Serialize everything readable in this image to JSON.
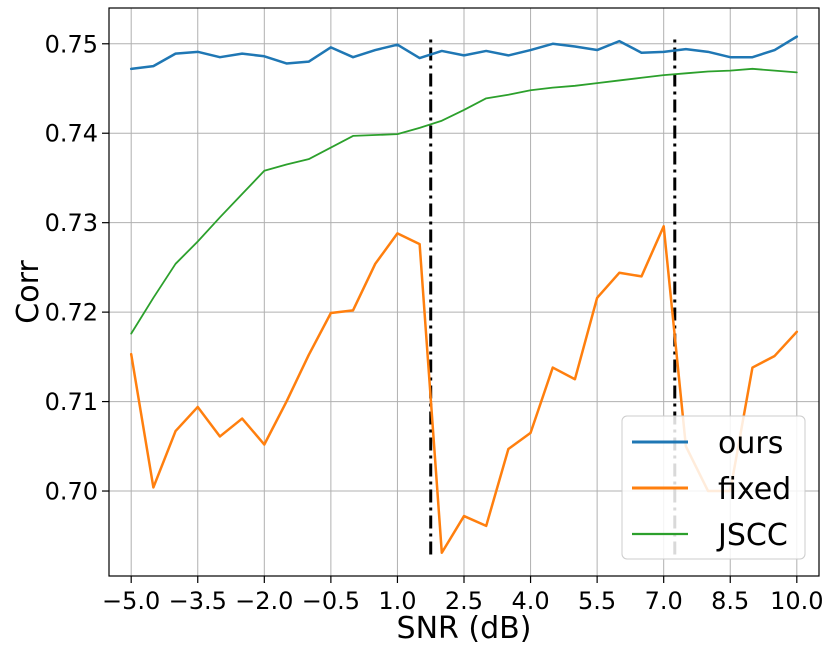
{
  "chart_data": {
    "type": "line",
    "xlabel": "SNR (dB)",
    "ylabel": "Corr",
    "xlim": [
      -5.5,
      10.5
    ],
    "ylim": [
      0.6905,
      0.754
    ],
    "xticks": [
      -5.0,
      -3.5,
      -2.0,
      -0.5,
      1.0,
      2.5,
      4.0,
      5.5,
      7.0,
      8.5,
      10.0
    ],
    "xtick_labels": [
      "−5.0",
      "−3.5",
      "−2.0",
      "−0.5",
      "1.0",
      "2.5",
      "4.0",
      "5.5",
      "7.0",
      "8.5",
      "10.0"
    ],
    "yticks": [
      0.7,
      0.71,
      0.72,
      0.73,
      0.74,
      0.75
    ],
    "ytick_labels": [
      "0.70",
      "0.71",
      "0.72",
      "0.73",
      "0.74",
      "0.75"
    ],
    "grid": true,
    "legend_position": "bottom-right",
    "x": [
      -5.0,
      -4.5,
      -4.0,
      -3.5,
      -3.0,
      -2.5,
      -2.0,
      -1.5,
      -1.0,
      -0.5,
      0.0,
      0.5,
      1.0,
      1.5,
      2.0,
      2.5,
      3.0,
      3.5,
      4.0,
      4.5,
      5.0,
      5.5,
      6.0,
      6.5,
      7.0,
      7.5,
      8.0,
      8.5,
      9.0,
      9.5,
      10.0
    ],
    "series": [
      {
        "name": "ours",
        "color": "#1f77b4",
        "width": 2.5,
        "values": [
          0.7472,
          0.7475,
          0.7489,
          0.7491,
          0.7485,
          0.7489,
          0.7486,
          0.7478,
          0.748,
          0.7496,
          0.7485,
          0.7493,
          0.7499,
          0.7484,
          0.7492,
          0.7487,
          0.7492,
          0.7487,
          0.7493,
          0.75,
          0.7497,
          0.7493,
          0.7503,
          0.749,
          0.7491,
          0.7494,
          0.7491,
          0.7485,
          0.7485,
          0.7493,
          0.7508
        ]
      },
      {
        "name": "fixed",
        "color": "#ff7f0e",
        "width": 2.5,
        "values": [
          0.7153,
          0.7004,
          0.7067,
          0.7094,
          0.7061,
          0.7081,
          0.7052,
          0.71,
          0.7152,
          0.7199,
          0.7202,
          0.7254,
          0.7288,
          0.7276,
          0.6931,
          0.6972,
          0.6961,
          0.7047,
          0.7065,
          0.7138,
          0.7125,
          0.7216,
          0.7244,
          0.724,
          0.7296,
          0.705,
          0.7,
          0.7,
          0.7138,
          0.7151,
          0.7178
        ]
      },
      {
        "name": "JSCC",
        "color": "#2ca02c",
        "width": 1.8,
        "values": [
          0.7176,
          0.7216,
          0.7254,
          0.7279,
          0.7306,
          0.7332,
          0.7358,
          0.7365,
          0.7371,
          0.7384,
          0.7397,
          0.7398,
          0.7399,
          0.7406,
          0.7414,
          0.7426,
          0.7439,
          0.7443,
          0.7448,
          0.7451,
          0.7453,
          0.7456,
          0.7459,
          0.7462,
          0.7465,
          0.7467,
          0.7469,
          0.747,
          0.7472,
          0.747,
          0.7468
        ]
      }
    ],
    "vlines": [
      {
        "x": 1.75,
        "y_range": [
          0.6929,
          0.7506
        ],
        "color": "#000000",
        "style": "dashdot"
      },
      {
        "x": 7.25,
        "y_range": [
          0.6929,
          0.7506
        ],
        "color": "#000000",
        "style": "dashdot"
      }
    ]
  }
}
